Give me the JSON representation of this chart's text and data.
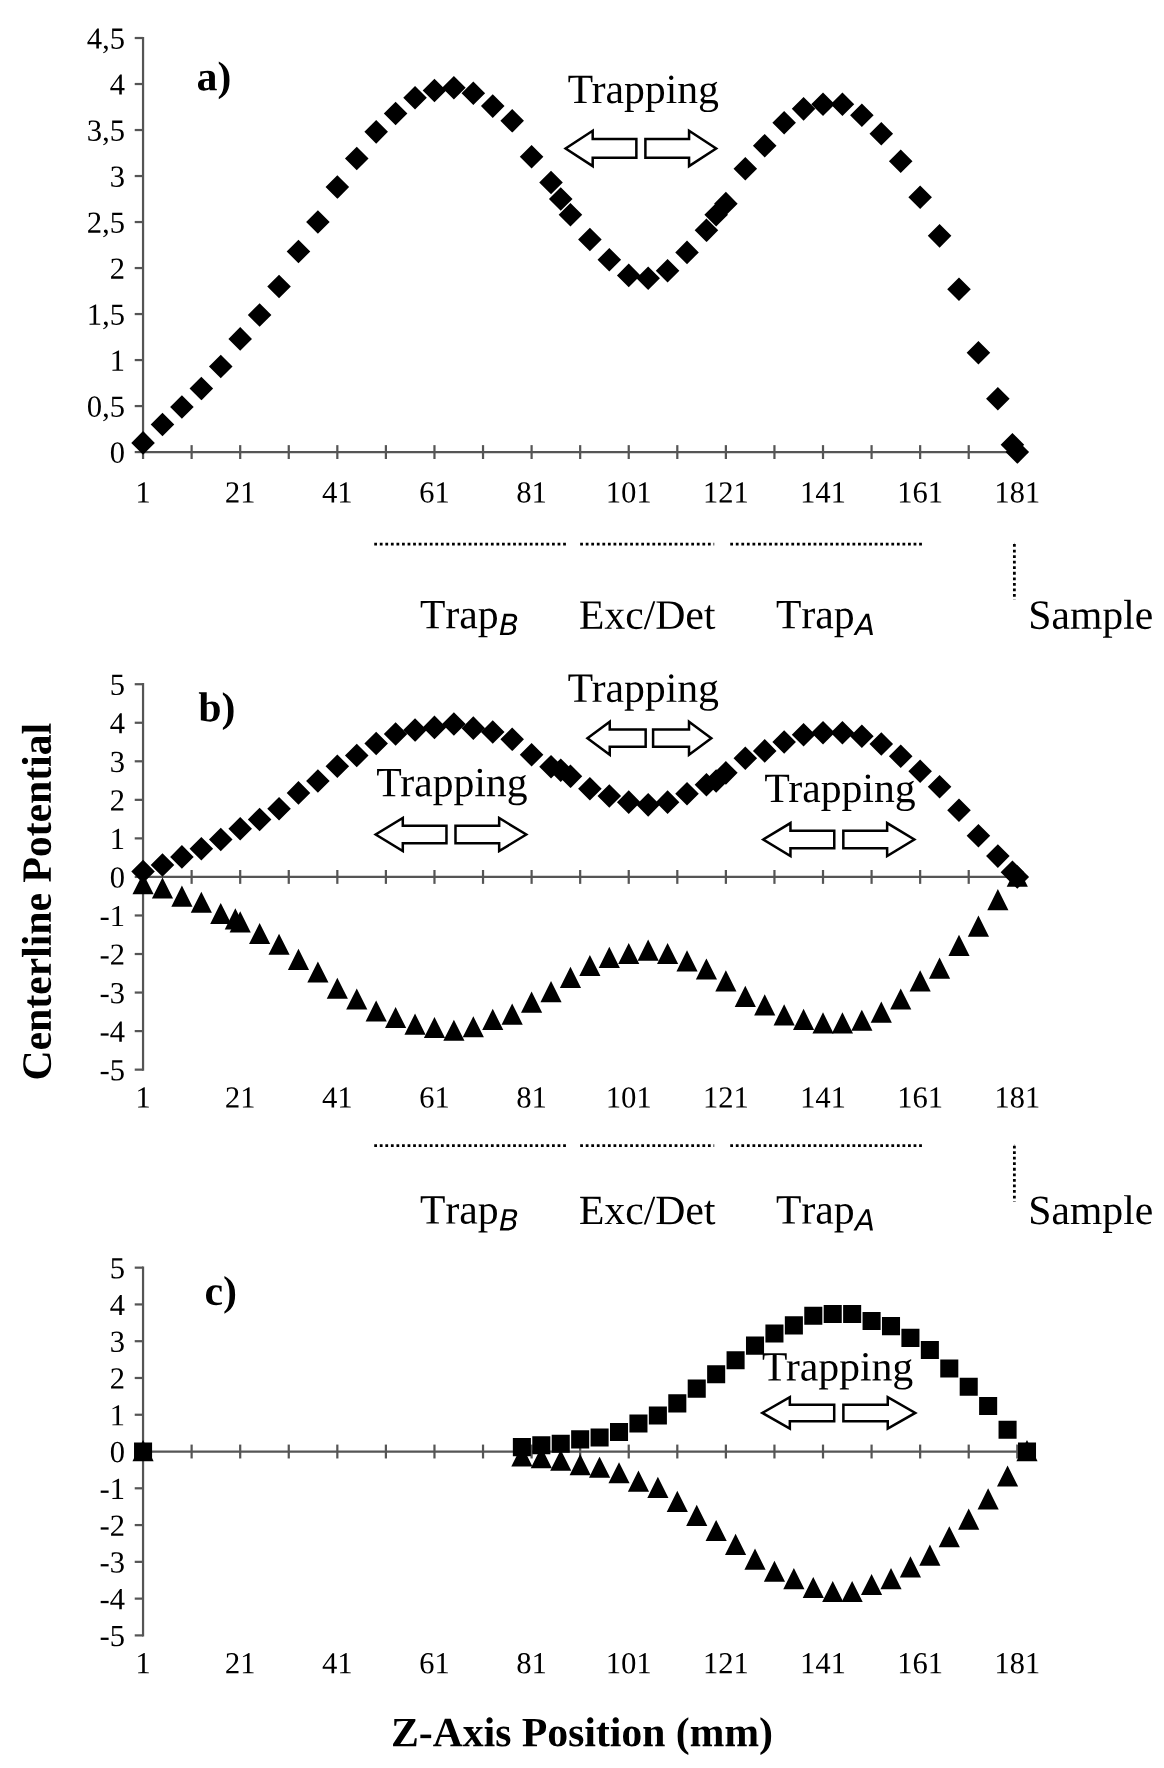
{
  "chart_data": [
    {
      "type": "scatter",
      "xlim": [
        1,
        183
      ],
      "ylim": [
        0,
        4.5
      ],
      "xticks": [
        1,
        {
          "value": 11,
          "label": null
        },
        21,
        {
          "value": 31,
          "label": null
        },
        41,
        {
          "value": 51,
          "label": null
        },
        61,
        {
          "value": 71,
          "label": null
        },
        81,
        {
          "value": 91,
          "label": null
        },
        101,
        {
          "value": 111,
          "label": null
        },
        121,
        {
          "value": 131,
          "label": null
        },
        141,
        {
          "value": 151,
          "label": null
        },
        161,
        {
          "value": 171,
          "label": null
        },
        181
      ],
      "yticks": [
        0,
        {
          "value": 0.5,
          "label": "0,5"
        },
        1,
        {
          "value": 1.5,
          "label": "1,5"
        },
        2,
        {
          "value": 2.5,
          "label": "2,5"
        },
        3,
        {
          "value": 3.5,
          "label": "3,5"
        },
        4,
        {
          "value": 4.5,
          "label": "4,5"
        }
      ],
      "annotations": [
        "a)",
        "Trapping",
        "Trap$_{B}$",
        "Exc/Det",
        "Trap$_{A}$",
        "Sample"
      ],
      "series": [
        {
          "color": "#000000",
          "marker": "diamond",
          "x": [
            1,
            5,
            9,
            13,
            17,
            21,
            25,
            29,
            33,
            37,
            41,
            45,
            49,
            53,
            57,
            61,
            65,
            69,
            73,
            77,
            81,
            85,
            87,
            89,
            93,
            97,
            101,
            105,
            109,
            113,
            117,
            119,
            121,
            125,
            129,
            133,
            137,
            141,
            145,
            149,
            153,
            157,
            161,
            165,
            169,
            173,
            177,
            180,
            181
          ],
          "values": [
            0.1,
            0.3,
            0.49,
            0.69,
            0.93,
            1.23,
            1.49,
            1.8,
            2.18,
            2.5,
            2.88,
            3.19,
            3.48,
            3.68,
            3.85,
            3.93,
            3.96,
            3.9,
            3.76,
            3.6,
            3.21,
            2.93,
            2.75,
            2.58,
            2.31,
            2.09,
            1.92,
            1.89,
            1.97,
            2.17,
            2.41,
            2.58,
            2.7,
            3.08,
            3.33,
            3.58,
            3.73,
            3.78,
            3.78,
            3.66,
            3.46,
            3.16,
            2.77,
            2.35,
            1.77,
            1.08,
            0.58,
            0.08,
            0
          ]
        }
      ]
    },
    {
      "type": "scatter",
      "xlim": [
        1,
        183
      ],
      "ylim": [
        -5,
        5
      ],
      "xticks": [
        1,
        {
          "value": 11,
          "label": null
        },
        21,
        {
          "value": 31,
          "label": null
        },
        41,
        {
          "value": 51,
          "label": null
        },
        61,
        {
          "value": 71,
          "label": null
        },
        81,
        {
          "value": 91,
          "label": null
        },
        101,
        {
          "value": 111,
          "label": null
        },
        121,
        {
          "value": 131,
          "label": null
        },
        141,
        {
          "value": 151,
          "label": null
        },
        161,
        {
          "value": 171,
          "label": null
        },
        181
      ],
      "yticks": [
        -5,
        -4,
        -3,
        -2,
        -1,
        0,
        1,
        2,
        3,
        4,
        5
      ],
      "ylabel": "Centerline Potential",
      "annotations": [
        "b)",
        "Trapping",
        "Trapping",
        "Trapping",
        "Trap$_{B}$",
        "Exc/Det",
        "Trap$_{A}$",
        "Sample"
      ],
      "series": [
        {
          "color": "#000000",
          "marker": "diamond",
          "x": [
            1,
            5,
            9,
            13,
            17,
            21,
            25,
            29,
            33,
            37,
            41,
            45,
            49,
            53,
            57,
            61,
            65,
            69,
            73,
            77,
            81,
            85,
            87,
            89,
            93,
            97,
            101,
            105,
            109,
            113,
            117,
            119,
            121,
            125,
            129,
            133,
            137,
            141,
            145,
            149,
            153,
            157,
            161,
            165,
            169,
            173,
            177,
            180,
            181
          ],
          "values": [
            0.14,
            0.31,
            0.52,
            0.73,
            0.97,
            1.25,
            1.49,
            1.77,
            2.18,
            2.49,
            2.87,
            3.15,
            3.46,
            3.71,
            3.81,
            3.88,
            3.97,
            3.86,
            3.76,
            3.57,
            3.17,
            2.86,
            2.77,
            2.61,
            2.29,
            2.1,
            1.94,
            1.87,
            1.94,
            2.16,
            2.39,
            2.49,
            2.7,
            3.08,
            3.27,
            3.5,
            3.69,
            3.74,
            3.74,
            3.65,
            3.45,
            3.13,
            2.74,
            2.34,
            1.73,
            1.07,
            0.54,
            0.12,
            0
          ]
        },
        {
          "color": "#000000",
          "marker": "triangle",
          "x": [
            1,
            5,
            9,
            13,
            17,
            20,
            21,
            25,
            29,
            33,
            37,
            41,
            45,
            49,
            53,
            57,
            61,
            65,
            69,
            73,
            77,
            81,
            85,
            89,
            93,
            97,
            101,
            105,
            109,
            113,
            117,
            121,
            125,
            129,
            133,
            137,
            141,
            145,
            149,
            153,
            157,
            161,
            165,
            169,
            173,
            177,
            181
          ],
          "values": [
            -0.2,
            -0.31,
            -0.52,
            -0.68,
            -0.97,
            -1.11,
            -1.19,
            -1.49,
            -1.77,
            -2.16,
            -2.49,
            -2.91,
            -3.19,
            -3.5,
            -3.67,
            -3.84,
            -3.93,
            -4.0,
            -3.91,
            -3.72,
            -3.58,
            -3.27,
            -3.0,
            -2.63,
            -2.32,
            -2.11,
            -2.01,
            -1.92,
            -2.01,
            -2.2,
            -2.41,
            -2.72,
            -3.12,
            -3.34,
            -3.6,
            -3.72,
            -3.81,
            -3.81,
            -3.74,
            -3.53,
            -3.19,
            -2.72,
            -2.39,
            -1.8,
            -1.3,
            -0.61,
            0
          ]
        }
      ]
    },
    {
      "type": "scatter",
      "xlim": [
        1,
        183
      ],
      "ylim": [
        -5,
        5
      ],
      "xticks": [
        1,
        {
          "value": 11,
          "label": null
        },
        21,
        {
          "value": 31,
          "label": null
        },
        41,
        {
          "value": 51,
          "label": null
        },
        61,
        {
          "value": 71,
          "label": null
        },
        81,
        {
          "value": 91,
          "label": null
        },
        101,
        {
          "value": 111,
          "label": null
        },
        121,
        {
          "value": 131,
          "label": null
        },
        141,
        {
          "value": 151,
          "label": null
        },
        161,
        {
          "value": 171,
          "label": null
        },
        181
      ],
      "yticks": [
        -5,
        -4,
        -3,
        -2,
        -1,
        0,
        1,
        2,
        3,
        4,
        5
      ],
      "xlabel": "Z-Axis Position (mm)",
      "annotations": [
        "c)",
        "Trapping"
      ],
      "series": [
        {
          "color": "#000000",
          "marker": "square",
          "x": [
            1,
            79,
            83,
            87,
            91,
            95,
            99,
            103,
            107,
            111,
            115,
            119,
            123,
            127,
            131,
            135,
            139,
            143,
            147,
            151,
            155,
            159,
            163,
            167,
            171,
            175,
            179,
            183
          ],
          "values": [
            0,
            0.12,
            0.17,
            0.21,
            0.33,
            0.38,
            0.53,
            0.76,
            0.98,
            1.31,
            1.71,
            2.1,
            2.48,
            2.88,
            3.21,
            3.43,
            3.69,
            3.74,
            3.74,
            3.55,
            3.41,
            3.09,
            2.76,
            2.26,
            1.76,
            1.24,
            0.59,
            0
          ]
        },
        {
          "color": "#000000",
          "marker": "triangle",
          "x": [
            1,
            79,
            83,
            87,
            91,
            95,
            99,
            103,
            107,
            111,
            115,
            119,
            123,
            127,
            131,
            135,
            139,
            143,
            147,
            151,
            155,
            159,
            163,
            167,
            171,
            175,
            179,
            183
          ],
          "values": [
            0,
            -0.14,
            -0.19,
            -0.26,
            -0.38,
            -0.45,
            -0.6,
            -0.83,
            -1.0,
            -1.38,
            -1.76,
            -2.17,
            -2.55,
            -2.95,
            -3.28,
            -3.48,
            -3.72,
            -3.83,
            -3.83,
            -3.64,
            -3.48,
            -3.16,
            -2.84,
            -2.34,
            -1.86,
            -1.31,
            -0.69,
            0
          ]
        }
      ]
    }
  ]
}
